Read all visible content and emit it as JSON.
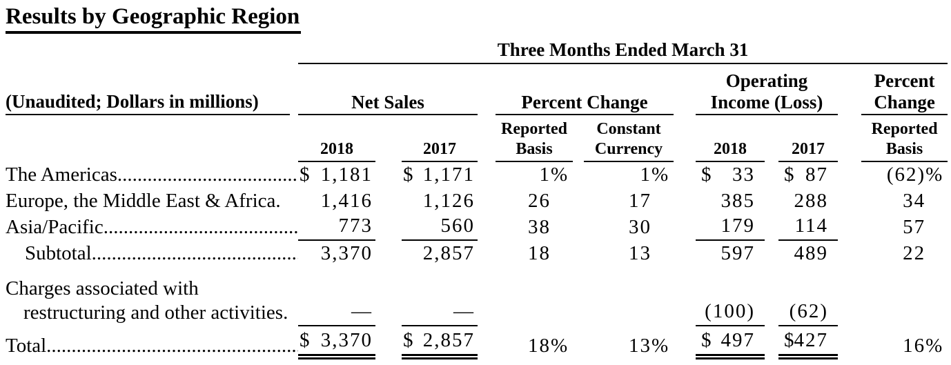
{
  "title": "Results by Geographic Region",
  "table": {
    "period_header": "Three Months Ended March 31",
    "left_header": "(Unaudited; Dollars in millions)",
    "group_headers": {
      "net_sales": "Net Sales",
      "percent_change": "Percent Change",
      "operating_income": "Operating Income (Loss)",
      "percent_change_reported": "Percent Change"
    },
    "column_headers": {
      "net_sales_2018": "2018",
      "net_sales_2017": "2017",
      "reported_basis": "Reported Basis",
      "constant_currency": "Constant Currency",
      "oi_2018": "2018",
      "oi_2017": "2017",
      "pc_reported_basis": "Reported Basis"
    },
    "rows": [
      {
        "label": "The Americas.........................................................",
        "ns2018": {
          "d": "$",
          "v": "1,181"
        },
        "ns2017": {
          "d": "$",
          "v": "1,171"
        },
        "pc_rep": {
          "v": "1",
          "s": "%"
        },
        "pc_con": {
          "v": "1",
          "s": "%"
        },
        "oi2018": {
          "d": "$",
          "v": "33"
        },
        "oi2017": {
          "d": "$",
          "v": "87"
        },
        "pcr": {
          "v": "(62)",
          "s": "%"
        }
      },
      {
        "label": "Europe, the Middle East & Africa.",
        "ns2018": {
          "d": "",
          "v": "1,416"
        },
        "ns2017": {
          "d": "",
          "v": "1,126"
        },
        "pc_rep": {
          "v": "26",
          "s": ""
        },
        "pc_con": {
          "v": "17",
          "s": ""
        },
        "oi2018": {
          "d": "",
          "v": "385"
        },
        "oi2017": {
          "d": "",
          "v": "288"
        },
        "pcr": {
          "v": "34",
          "s": ""
        }
      },
      {
        "label": "Asia/Pacific..............................................................",
        "ns2018": {
          "d": "",
          "v": "773"
        },
        "ns2017": {
          "d": "",
          "v": "560"
        },
        "pc_rep": {
          "v": "38",
          "s": ""
        },
        "pc_con": {
          "v": "30",
          "s": ""
        },
        "oi2018": {
          "d": "",
          "v": "179"
        },
        "oi2017": {
          "d": "",
          "v": "114"
        },
        "pcr": {
          "v": "57",
          "s": ""
        }
      },
      {
        "label": "Subtotal..................................................................",
        "ns2018": {
          "d": "",
          "v": "3,370"
        },
        "ns2017": {
          "d": "",
          "v": "2,857"
        },
        "pc_rep": {
          "v": "18",
          "s": ""
        },
        "pc_con": {
          "v": "13",
          "s": ""
        },
        "oi2018": {
          "d": "",
          "v": "597"
        },
        "oi2017": {
          "d": "",
          "v": "489"
        },
        "pcr": {
          "v": "22",
          "s": ""
        }
      },
      {
        "label": "Charges associated with",
        "label2": "restructuring and other activities.",
        "ns2018": {
          "d": "",
          "v": "—"
        },
        "ns2017": {
          "d": "",
          "v": "—"
        },
        "pc_rep": {
          "v": "",
          "s": ""
        },
        "pc_con": {
          "v": "",
          "s": ""
        },
        "oi2018": {
          "d": "",
          "v": "(100)"
        },
        "oi2017": {
          "d": "",
          "v": "(62)"
        },
        "pcr": {
          "v": "",
          "s": ""
        }
      },
      {
        "label": "Total.........................................................................",
        "ns2018": {
          "d": "$",
          "v": "3,370"
        },
        "ns2017": {
          "d": "$",
          "v": "2,857"
        },
        "pc_rep": {
          "v": "18",
          "s": "%"
        },
        "pc_con": {
          "v": "13",
          "s": "%"
        },
        "oi2018": {
          "d": "$",
          "v": "497"
        },
        "oi2017": {
          "d": "$",
          "v": "427"
        },
        "pcr": {
          "v": "16",
          "s": "%"
        }
      }
    ]
  }
}
